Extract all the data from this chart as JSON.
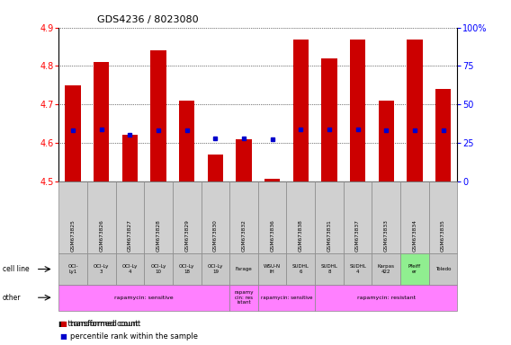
{
  "title": "GDS4236 / 8023080",
  "samples": [
    "GSM673825",
    "GSM673826",
    "GSM673827",
    "GSM673828",
    "GSM673829",
    "GSM673830",
    "GSM673832",
    "GSM673836",
    "GSM673838",
    "GSM673831",
    "GSM673837",
    "GSM673833",
    "GSM673834",
    "GSM673835"
  ],
  "transformed_count": [
    4.75,
    4.81,
    4.62,
    4.84,
    4.71,
    4.57,
    4.61,
    4.505,
    4.87,
    4.82,
    4.87,
    4.71,
    4.87,
    4.74
  ],
  "percentile_rank": [
    33,
    34,
    30,
    33,
    33,
    28,
    28,
    27,
    34,
    34,
    34,
    33,
    33,
    33
  ],
  "cell_line_row1": [
    "OCI-",
    "OCI-Ly",
    "OCI-Ly",
    "OCI-Ly",
    "OCI-Ly",
    "OCI-Ly",
    "Farage",
    "WSU-N",
    "SUDHL",
    "SUDHL",
    "SUDHL",
    "Karpas",
    "Pfeiff",
    "Toledo"
  ],
  "cell_line_row2": [
    "Ly1",
    "3",
    "4",
    "10",
    "18",
    "19",
    "",
    "IH",
    "6",
    "8",
    "4",
    "422",
    "er",
    ""
  ],
  "cell_line_colors": [
    "#c8c8c8",
    "#c8c8c8",
    "#c8c8c8",
    "#c8c8c8",
    "#c8c8c8",
    "#c8c8c8",
    "#c8c8c8",
    "#c8c8c8",
    "#c8c8c8",
    "#c8c8c8",
    "#c8c8c8",
    "#c8c8c8",
    "#90ee90",
    "#c8c8c8"
  ],
  "other_segments": [
    {
      "text": "rapamycin: sensitive",
      "start": 0,
      "end": 6,
      "color": "#ff80ff"
    },
    {
      "text": "rapamy\ncin: res\nistant",
      "start": 6,
      "end": 7,
      "color": "#ff80ff"
    },
    {
      "text": "rapamycin: sensitive",
      "start": 7,
      "end": 9,
      "color": "#ff80ff"
    },
    {
      "text": "rapamycin: resistant",
      "start": 9,
      "end": 14,
      "color": "#ff80ff"
    }
  ],
  "ylim_left": [
    4.5,
    4.9
  ],
  "ylim_right": [
    0,
    100
  ],
  "yticks_left": [
    4.5,
    4.6,
    4.7,
    4.8,
    4.9
  ],
  "yticks_right": [
    0,
    25,
    50,
    75,
    100
  ],
  "bar_color": "#cc0000",
  "dot_color": "#0000cc",
  "bar_bottom": 4.5
}
